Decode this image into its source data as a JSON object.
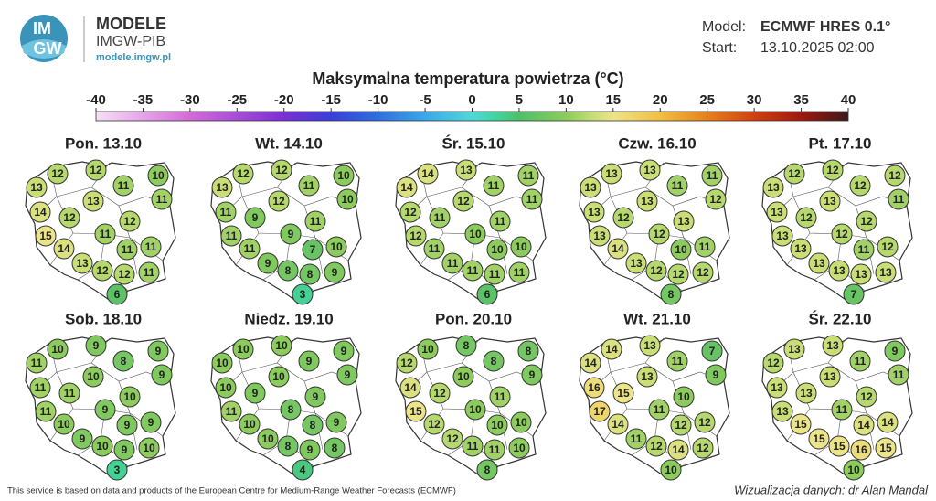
{
  "header": {
    "logo_top": "IM",
    "logo_bottom": "GW",
    "name": "MODELE",
    "org": "IMGW-PIB",
    "url": "modele.imgw.pl",
    "model_label": "Model:",
    "model": "ECMWF HRES 0.1°",
    "start_label": "Start:",
    "start": "13.10.2025 02:00"
  },
  "title": "Maksymalna temperatura powietrza (°C)",
  "colorbar": {
    "ticks": [
      -40,
      -35,
      -30,
      -25,
      -20,
      -15,
      -10,
      -5,
      0,
      5,
      10,
      15,
      20,
      25,
      30,
      35,
      40
    ]
  },
  "panels": [
    {
      "label": "Pon. 13.10",
      "values": [
        13,
        12,
        12,
        11,
        10,
        11,
        13,
        14,
        12,
        12,
        15,
        11,
        14,
        11,
        11,
        13,
        12,
        12,
        11,
        6
      ]
    },
    {
      "label": "Wt. 14.10",
      "values": [
        13,
        12,
        12,
        11,
        10,
        10,
        12,
        11,
        9,
        11,
        11,
        9,
        11,
        7,
        10,
        9,
        8,
        8,
        9,
        3
      ]
    },
    {
      "label": "Śr. 15.10",
      "values": [
        14,
        14,
        13,
        11,
        11,
        11,
        12,
        12,
        11,
        11,
        12,
        10,
        11,
        10,
        10,
        11,
        11,
        11,
        11,
        6
      ]
    },
    {
      "label": "Czw. 16.10",
      "values": [
        13,
        13,
        13,
        11,
        11,
        12,
        13,
        13,
        12,
        13,
        13,
        12,
        14,
        10,
        11,
        13,
        12,
        12,
        12,
        8
      ]
    },
    {
      "label": "Pt. 17.10",
      "values": [
        13,
        12,
        12,
        12,
        12,
        11,
        13,
        13,
        12,
        12,
        13,
        12,
        13,
        11,
        12,
        13,
        13,
        13,
        13,
        7
      ]
    },
    {
      "label": "Sob. 18.10",
      "values": [
        11,
        10,
        9,
        8,
        9,
        9,
        10,
        11,
        11,
        10,
        11,
        9,
        10,
        9,
        9,
        9,
        10,
        9,
        10,
        3
      ]
    },
    {
      "label": "Niedz. 19.10",
      "values": [
        10,
        10,
        10,
        9,
        9,
        9,
        10,
        10,
        9,
        9,
        11,
        8,
        10,
        8,
        9,
        10,
        8,
        9,
        8,
        4
      ]
    },
    {
      "label": "Pon. 20.10",
      "values": [
        12,
        10,
        8,
        8,
        8,
        9,
        10,
        14,
        12,
        11,
        15,
        10,
        12,
        10,
        10,
        12,
        11,
        11,
        10,
        8
      ]
    },
    {
      "label": "Wt. 21.10",
      "values": [
        14,
        14,
        13,
        11,
        7,
        9,
        13,
        16,
        15,
        10,
        17,
        11,
        14,
        12,
        12,
        11,
        12,
        14,
        12,
        10
      ]
    },
    {
      "label": "Śr. 22.10",
      "values": [
        12,
        13,
        13,
        11,
        9,
        11,
        13,
        13,
        13,
        12,
        13,
        11,
        15,
        14,
        14,
        15,
        15,
        16,
        15,
        10
      ]
    }
  ],
  "footer": {
    "source": "This service is based on data and products of the European Centre for Medium-Range Weather Forecasts (ECMWF)",
    "credit": "Wizualizacja danych: dr Alan Mandal"
  }
}
